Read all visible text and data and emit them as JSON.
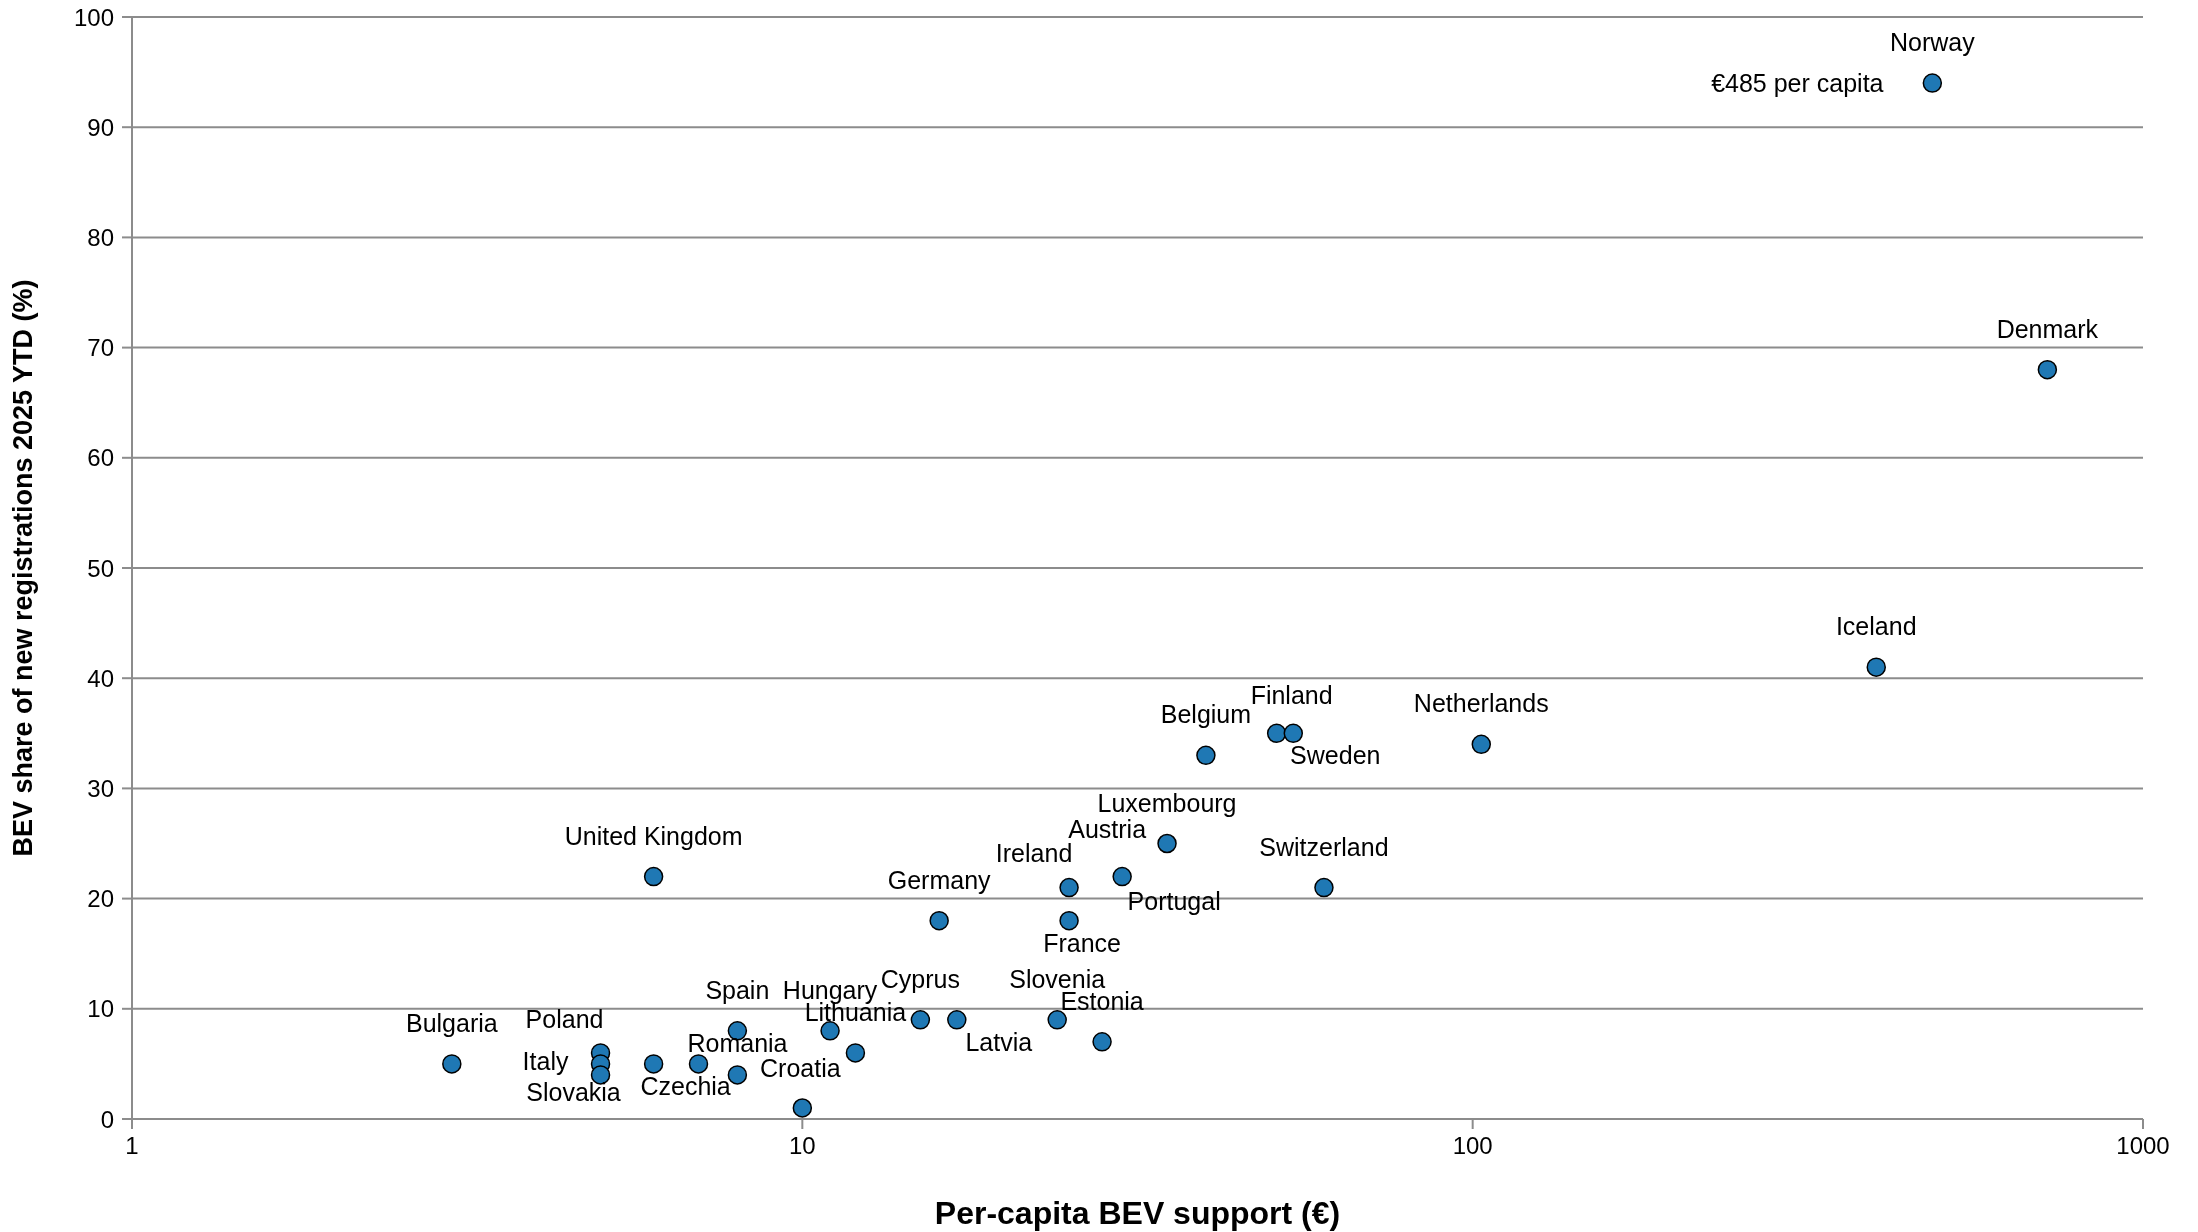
{
  "chart_data": {
    "type": "scatter",
    "xlabel": "Per-capita BEV support (€)",
    "ylabel": "BEV share of new registrations 2025 YTD (%)",
    "log": "x",
    "color": "#1f78b4",
    "marker": "circle",
    "grid": "y",
    "xlim": [
      1,
      1000
    ],
    "xticks": [
      1,
      10,
      100,
      1000
    ],
    "ylim": [
      0,
      100
    ],
    "yticks": [
      0,
      10,
      20,
      30,
      40,
      50,
      60,
      70,
      80,
      90,
      100
    ],
    "x": [
      3,
      5,
      5,
      5,
      6,
      7,
      8,
      8,
      10,
      11,
      12,
      15,
      17,
      24,
      28,
      6,
      16,
      25,
      25,
      30,
      35,
      40,
      51,
      54,
      60,
      103,
      400,
      720,
      485
    ],
    "values": [
      5,
      6,
      5,
      4,
      5,
      5,
      8,
      4,
      1,
      8,
      6,
      9,
      9,
      9,
      7,
      22,
      18,
      21,
      18,
      22,
      25,
      33,
      35,
      35,
      21,
      34,
      41,
      68,
      94
    ],
    "annotations": [
      {
        "text": "Bulgaria",
        "x": 3,
        "y": 5
      },
      {
        "text": "Poland",
        "x": 5,
        "y": 6
      },
      {
        "text": "Italy",
        "x": 5,
        "y": 5
      },
      {
        "text": "Slovakia",
        "x": 5,
        "y": 4
      },
      {
        "text": "Czechia",
        "x": 6,
        "y": 5
      },
      {
        "text": "Romania",
        "x": 7,
        "y": 5
      },
      {
        "text": "Spain",
        "x": 8,
        "y": 8
      },
      {
        "text": "Croatia",
        "x": 8,
        "y": 4
      },
      {
        "text": "Hungary",
        "x": 11,
        "y": 8
      },
      {
        "text": "Lithuania",
        "x": 12,
        "y": 6
      },
      {
        "text": "Cyprus",
        "x": 15,
        "y": 9
      },
      {
        "text": "Latvia",
        "x": 17,
        "y": 9
      },
      {
        "text": "Slovenia",
        "x": 24,
        "y": 9
      },
      {
        "text": "Estonia",
        "x": 28,
        "y": 7
      },
      {
        "text": "United Kingdom",
        "x": 6,
        "y": 22
      },
      {
        "text": "Germany",
        "x": 16,
        "y": 18
      },
      {
        "text": "Ireland",
        "x": 25,
        "y": 21
      },
      {
        "text": "France",
        "x": 25,
        "y": 18
      },
      {
        "text": "Austria",
        "x": 30,
        "y": 22
      },
      {
        "text": "Portugal",
        "x": 30,
        "y": 22
      },
      {
        "text": "Luxembourg",
        "x": 35,
        "y": 25
      },
      {
        "text": "Belgium",
        "x": 40,
        "y": 33
      },
      {
        "text": "Finland",
        "x": 51,
        "y": 35
      },
      {
        "text": "Sweden",
        "x": 54,
        "y": 35
      },
      {
        "text": "Switzerland",
        "x": 60,
        "y": 21
      },
      {
        "text": "Netherlands",
        "x": 103,
        "y": 34
      },
      {
        "text": "Iceland",
        "x": 400,
        "y": 41
      },
      {
        "text": "Denmark",
        "x": 720,
        "y": 68
      },
      {
        "text": "Norway",
        "x": 485,
        "y": 94
      },
      {
        "text": "€485 per capita",
        "x": 485,
        "y": 94
      }
    ]
  }
}
